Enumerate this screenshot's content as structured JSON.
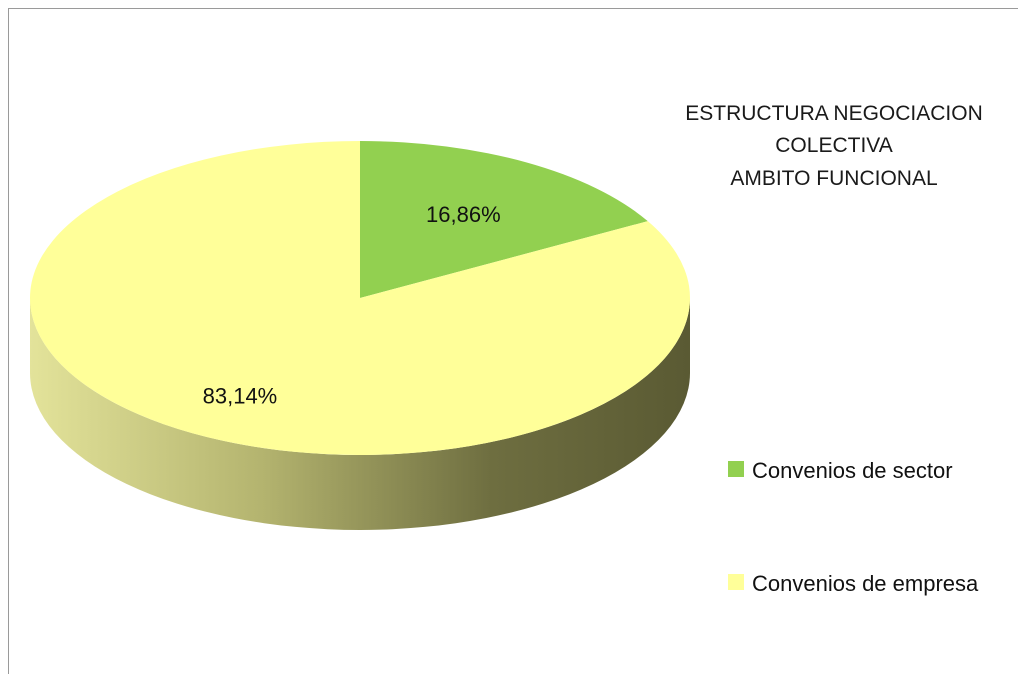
{
  "chart_data": {
    "type": "pie",
    "style": "3d",
    "title_lines": [
      "ESTRUCTURA NEGOCIACION",
      "COLECTIVA",
      "AMBITO FUNCIONAL"
    ],
    "slices": [
      {
        "label": "Convenios de sector",
        "value": 16.86,
        "data_label": "16,86%",
        "color": "#92d050"
      },
      {
        "label": "Convenios de empresa",
        "value": 83.14,
        "data_label": "83,14%",
        "color": "#ffff99"
      }
    ],
    "legend_position": "right"
  }
}
